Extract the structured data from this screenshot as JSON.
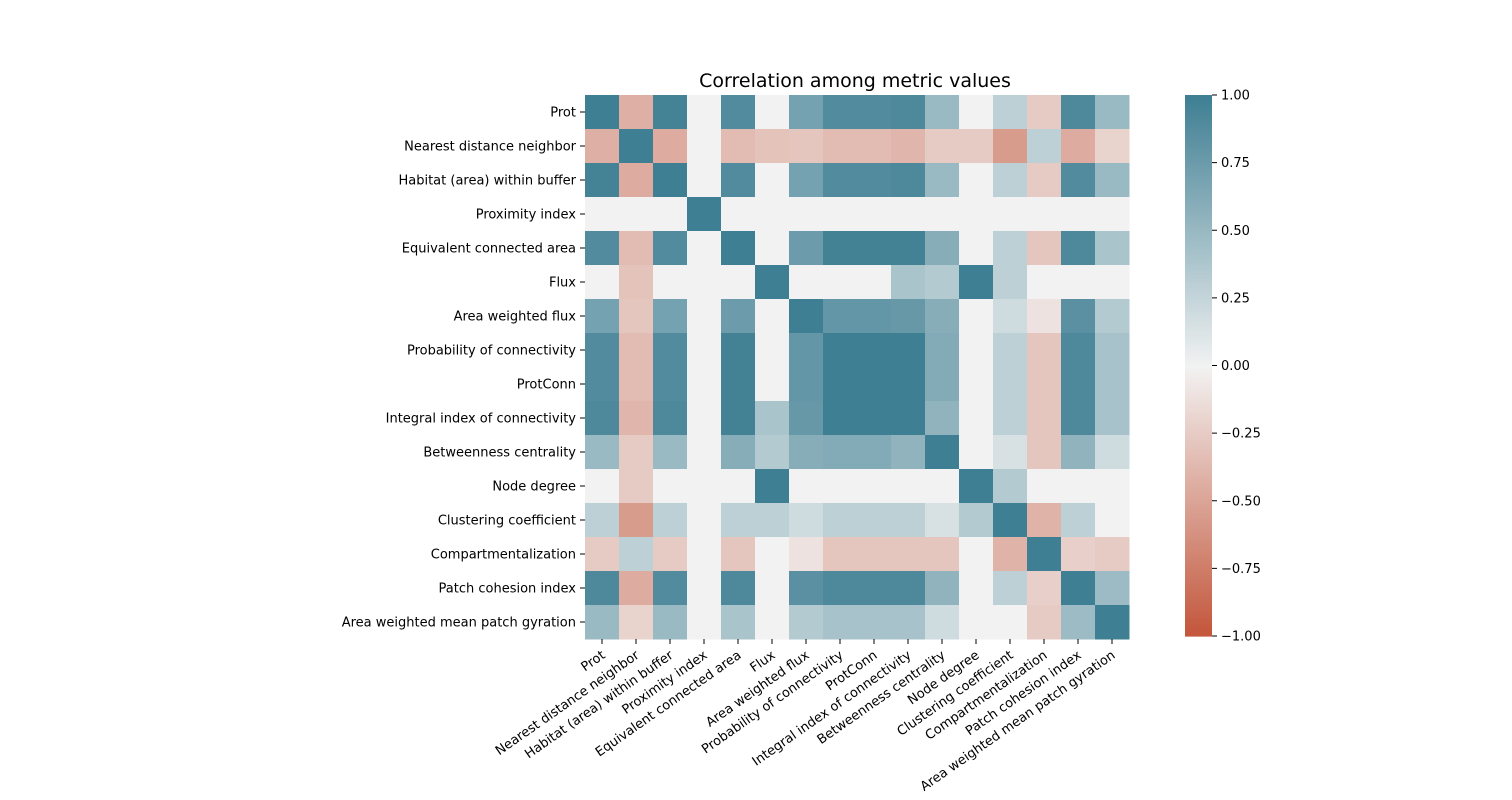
{
  "chart_data": {
    "type": "heatmap",
    "title": "Correlation among metric values",
    "xlabel": "",
    "ylabel": "",
    "labels": [
      "Prot",
      "Nearest distance neighbor",
      "Habitat (area) within buffer",
      "Proximity index",
      "Equivalent connected area",
      "Flux",
      "Area weighted flux",
      "Probability of connectivity",
      "ProtConn",
      "Integral index of connectivity",
      "Betweenness centrality",
      "Node degree",
      "Clustering coefficient",
      "Compartmentalization",
      "Patch cohesion index",
      "Area weighted mean patch gyration"
    ],
    "values": [
      [
        1.0,
        -0.42,
        0.97,
        0.0,
        0.9,
        0.0,
        0.7,
        0.9,
        0.9,
        0.92,
        0.5,
        0.0,
        0.3,
        -0.25,
        0.92,
        0.5
      ],
      [
        -0.42,
        1.0,
        -0.45,
        0.0,
        -0.35,
        -0.3,
        -0.28,
        -0.35,
        -0.35,
        -0.38,
        -0.25,
        -0.25,
        -0.55,
        0.3,
        -0.45,
        -0.2
      ],
      [
        0.97,
        -0.45,
        1.0,
        0.0,
        0.9,
        0.0,
        0.7,
        0.9,
        0.9,
        0.92,
        0.5,
        0.0,
        0.3,
        -0.25,
        0.9,
        0.5
      ],
      [
        0.0,
        0.0,
        0.0,
        1.0,
        0.0,
        0.0,
        0.0,
        0.0,
        0.0,
        0.0,
        0.0,
        0.0,
        0.0,
        0.0,
        0.0,
        0.0
      ],
      [
        0.9,
        -0.35,
        0.9,
        0.0,
        1.0,
        0.0,
        0.75,
        0.98,
        0.98,
        0.98,
        0.6,
        0.0,
        0.3,
        -0.28,
        0.92,
        0.4
      ],
      [
        0.0,
        -0.3,
        0.0,
        0.0,
        0.0,
        1.0,
        0.0,
        0.0,
        0.0,
        0.4,
        0.35,
        1.0,
        0.3,
        0.0,
        0.0,
        0.0
      ],
      [
        0.7,
        -0.28,
        0.7,
        0.0,
        0.75,
        0.0,
        1.0,
        0.8,
        0.8,
        0.78,
        0.6,
        0.0,
        0.2,
        -0.1,
        0.85,
        0.35
      ],
      [
        0.9,
        -0.35,
        0.9,
        0.0,
        0.98,
        0.0,
        0.8,
        1.0,
        1.0,
        1.0,
        0.62,
        0.0,
        0.3,
        -0.28,
        0.92,
        0.42
      ],
      [
        0.9,
        -0.35,
        0.9,
        0.0,
        0.98,
        0.0,
        0.8,
        1.0,
        1.0,
        1.0,
        0.62,
        0.0,
        0.3,
        -0.28,
        0.92,
        0.42
      ],
      [
        0.92,
        -0.38,
        0.92,
        0.0,
        0.98,
        0.4,
        0.78,
        1.0,
        1.0,
        1.0,
        0.55,
        0.0,
        0.3,
        -0.28,
        0.92,
        0.42
      ],
      [
        0.5,
        -0.25,
        0.5,
        0.0,
        0.6,
        0.35,
        0.6,
        0.62,
        0.62,
        0.55,
        1.0,
        0.0,
        0.15,
        -0.28,
        0.55,
        0.2
      ],
      [
        0.0,
        -0.25,
        0.0,
        0.0,
        0.0,
        1.0,
        0.0,
        0.0,
        0.0,
        0.0,
        0.0,
        1.0,
        0.35,
        0.0,
        0.0,
        0.0
      ],
      [
        0.3,
        -0.55,
        0.3,
        0.0,
        0.3,
        0.3,
        0.2,
        0.3,
        0.3,
        0.3,
        0.15,
        0.35,
        1.0,
        -0.4,
        0.3,
        0.0
      ],
      [
        -0.25,
        0.3,
        -0.25,
        0.0,
        -0.28,
        0.0,
        -0.1,
        -0.28,
        -0.28,
        -0.28,
        -0.28,
        0.0,
        -0.4,
        1.0,
        -0.22,
        -0.25
      ],
      [
        0.92,
        -0.45,
        0.9,
        0.0,
        0.92,
        0.0,
        0.85,
        0.92,
        0.92,
        0.92,
        0.55,
        0.0,
        0.3,
        -0.22,
        1.0,
        0.48
      ],
      [
        0.5,
        -0.2,
        0.5,
        0.0,
        0.4,
        0.0,
        0.35,
        0.42,
        0.42,
        0.42,
        0.2,
        0.0,
        0.0,
        -0.25,
        0.48,
        1.0
      ]
    ],
    "vmin": -1.0,
    "vmax": 1.0,
    "colorbar_ticks": [
      "1.00",
      "0.75",
      "0.50",
      "0.25",
      "0.00",
      "−0.25",
      "−0.50",
      "−0.75",
      "−1.00"
    ],
    "colors": {
      "negative": "#c3553a",
      "center": "#f2f2f2",
      "positive": "#3f7f93"
    }
  }
}
